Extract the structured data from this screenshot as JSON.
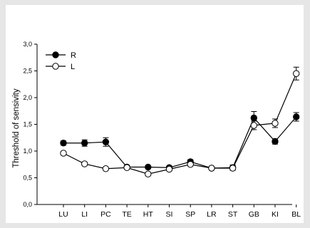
{
  "chart_data": {
    "type": "line",
    "categories": [
      "LU",
      "LI",
      "PC",
      "TE",
      "HT",
      "SI",
      "SP",
      "LR",
      "ST",
      "GB",
      "KI",
      "BL"
    ],
    "ylabel": "Threshold of sensivity",
    "xlabel": "",
    "ylim": [
      0,
      3
    ],
    "yticks": [
      "0,0",
      "0,5",
      "1,0",
      "1,5",
      "2,0",
      "2,5",
      "3,0"
    ],
    "grid": false,
    "legend_position": "top-left",
    "series": [
      {
        "name": "R",
        "marker": "filled-circle",
        "color": "#000000",
        "values": [
          1.15,
          1.15,
          1.17,
          0.7,
          0.7,
          0.69,
          0.8,
          0.68,
          0.69,
          1.62,
          1.18,
          1.64
        ],
        "errors": [
          0.04,
          0.06,
          0.08,
          0.02,
          0.02,
          0.03,
          0.04,
          0.02,
          0.05,
          0.12,
          0.05,
          0.08
        ]
      },
      {
        "name": "L",
        "marker": "open-circle",
        "color": "#000000",
        "values": [
          0.96,
          0.76,
          0.67,
          0.69,
          0.57,
          0.66,
          0.75,
          0.68,
          0.68,
          1.48,
          1.52,
          2.45
        ],
        "errors": [
          0.03,
          0.03,
          0.02,
          0.03,
          0.03,
          0.03,
          0.03,
          0.02,
          0.04,
          0.08,
          0.08,
          0.12
        ]
      }
    ]
  }
}
